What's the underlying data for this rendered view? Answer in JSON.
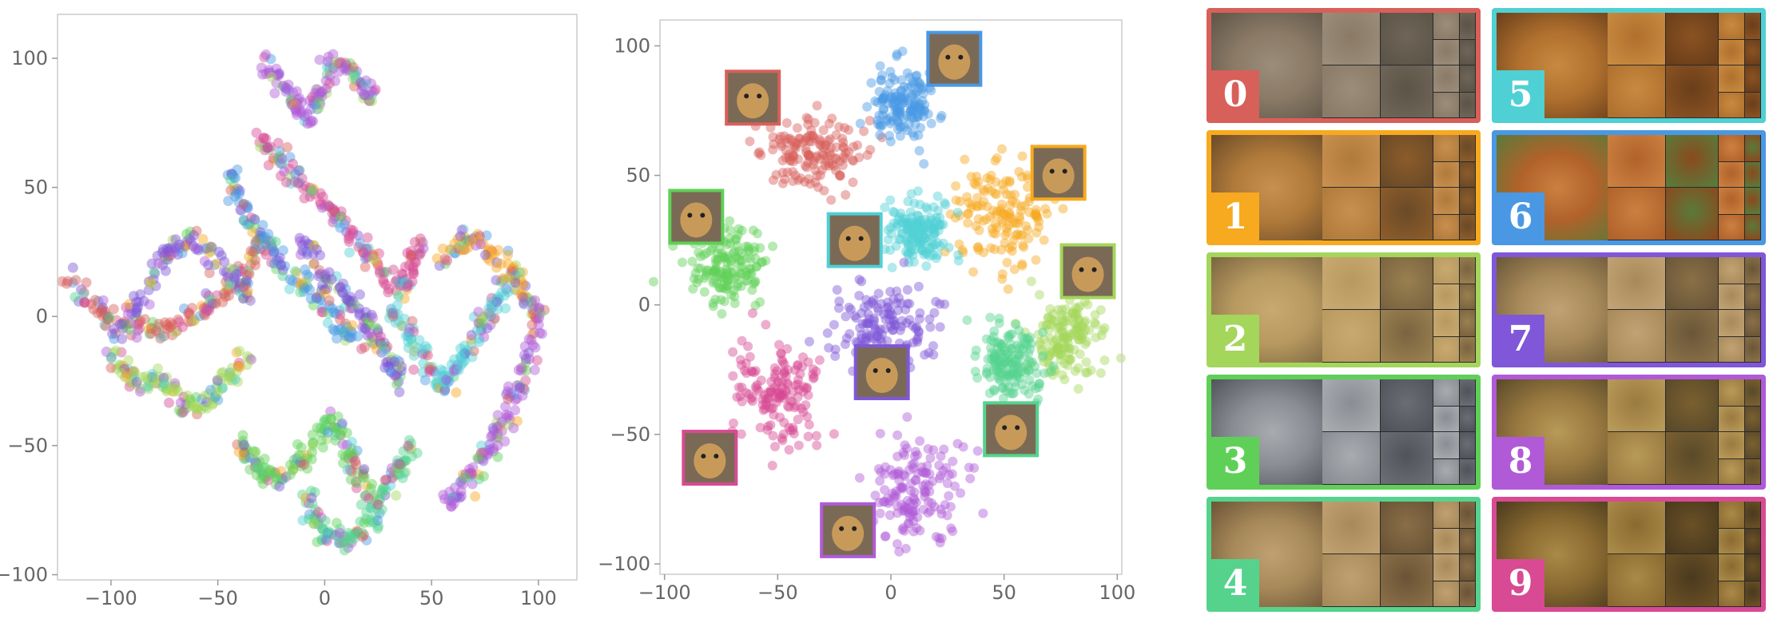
{
  "chart_data": [
    {
      "type": "scatter",
      "title": "",
      "xlabel": "",
      "ylabel": "",
      "xlim": [
        -125,
        118
      ],
      "ylim": [
        -102,
        117
      ],
      "xticks": [
        -100,
        -50,
        0,
        50,
        100
      ],
      "yticks": [
        -100,
        -50,
        0,
        50,
        100
      ],
      "xtick_labels": [
        "−100",
        "−50",
        "0",
        "50",
        "100"
      ],
      "ytick_labels": [
        "−100",
        "−50",
        "0",
        "50",
        "100"
      ],
      "grid": false,
      "note": "points of all 10 classes intermixed in tangled strands",
      "strands": [
        {
          "class": 0,
          "points": [
            [
              -120,
              14
            ],
            [
              -110,
              6
            ],
            [
              -100,
              -2
            ],
            [
              -88,
              -4
            ],
            [
              -76,
              -6
            ],
            [
              -64,
              -2
            ],
            [
              -54,
              4
            ],
            [
              -44,
              10
            ],
            [
              -36,
              20
            ],
            [
              -26,
              30
            ]
          ]
        },
        {
          "class": 7,
          "points": [
            [
              -98,
              -8
            ],
            [
              -88,
              4
            ],
            [
              -80,
              16
            ],
            [
              -72,
              26
            ],
            [
              -62,
              30
            ],
            [
              -52,
              22
            ],
            [
              -42,
              14
            ],
            [
              -34,
              6
            ]
          ]
        },
        {
          "class": 8,
          "points": [
            [
              -28,
              99
            ],
            [
              -20,
              92
            ],
            [
              -14,
              82
            ],
            [
              -8,
              76
            ],
            [
              -2,
              86
            ],
            [
              2,
              100
            ],
            [
              10,
              96
            ],
            [
              18,
              90
            ],
            [
              24,
              84
            ]
          ]
        },
        {
          "class": 9,
          "points": [
            [
              -30,
              70
            ],
            [
              -22,
              62
            ],
            [
              -14,
              54
            ],
            [
              -6,
              46
            ],
            [
              4,
              40
            ],
            [
              12,
              32
            ],
            [
              20,
              24
            ],
            [
              28,
              16
            ],
            [
              36,
              10
            ],
            [
              42,
              20
            ],
            [
              46,
              30
            ]
          ]
        },
        {
          "class": 6,
          "points": [
            [
              -44,
              58
            ],
            [
              -40,
              46
            ],
            [
              -34,
              36
            ],
            [
              -28,
              28
            ],
            [
              -20,
              20
            ],
            [
              -10,
              12
            ],
            [
              0,
              4
            ],
            [
              8,
              -4
            ],
            [
              16,
              -12
            ]
          ]
        },
        {
          "class": 2,
          "points": [
            [
              -100,
              -14
            ],
            [
              -94,
              -20
            ],
            [
              -86,
              -26
            ],
            [
              -76,
              -24
            ],
            [
              -68,
              -32
            ],
            [
              -60,
              -36
            ],
            [
              -52,
              -30
            ],
            [
              -44,
              -22
            ],
            [
              -36,
              -16
            ]
          ]
        },
        {
          "class": 3,
          "points": [
            [
              -40,
              -48
            ],
            [
              -34,
              -54
            ],
            [
              -28,
              -60
            ],
            [
              -20,
              -62
            ],
            [
              -12,
              -56
            ],
            [
              -4,
              -48
            ],
            [
              4,
              -42
            ],
            [
              10,
              -50
            ],
            [
              14,
              -60
            ],
            [
              20,
              -68
            ]
          ]
        },
        {
          "class": 4,
          "points": [
            [
              -10,
              -70
            ],
            [
              -4,
              -78
            ],
            [
              2,
              -86
            ],
            [
              10,
              -88
            ],
            [
              18,
              -82
            ],
            [
              24,
              -74
            ],
            [
              30,
              -66
            ],
            [
              36,
              -58
            ],
            [
              40,
              -48
            ]
          ]
        },
        {
          "class": 5,
          "points": [
            [
              30,
              4
            ],
            [
              38,
              -4
            ],
            [
              44,
              -14
            ],
            [
              50,
              -22
            ],
            [
              56,
              -28
            ],
            [
              62,
              -20
            ],
            [
              68,
              -10
            ],
            [
              74,
              -2
            ],
            [
              80,
              6
            ],
            [
              86,
              14
            ]
          ]
        },
        {
          "class": 1,
          "points": [
            [
              56,
              20
            ],
            [
              64,
              28
            ],
            [
              72,
              30
            ],
            [
              80,
              24
            ],
            [
              88,
              16
            ],
            [
              94,
              8
            ],
            [
              100,
              0
            ]
          ]
        },
        {
          "class": 8,
          "points": [
            [
              100,
              4
            ],
            [
              98,
              -10
            ],
            [
              94,
              -22
            ],
            [
              88,
              -34
            ],
            [
              82,
              -44
            ],
            [
              76,
              -52
            ],
            [
              70,
              -60
            ],
            [
              64,
              -66
            ],
            [
              58,
              -72
            ]
          ]
        },
        {
          "class": 7,
          "points": [
            [
              -10,
              30
            ],
            [
              -4,
              20
            ],
            [
              4,
              12
            ],
            [
              12,
              6
            ],
            [
              20,
              -2
            ],
            [
              26,
              -10
            ],
            [
              32,
              -18
            ],
            [
              36,
              -26
            ]
          ]
        }
      ]
    },
    {
      "type": "scatter",
      "title": "",
      "xlabel": "",
      "ylabel": "",
      "xlim": [
        -102,
        102
      ],
      "ylim": [
        -104,
        110
      ],
      "xticks": [
        -100,
        -50,
        0,
        50,
        100
      ],
      "yticks": [
        -100,
        -50,
        0,
        50,
        100
      ],
      "xtick_labels": [
        "−100",
        "−50",
        "0",
        "50",
        "100"
      ],
      "ytick_labels": [
        "−100",
        "−50",
        "0",
        "50",
        "100"
      ],
      "grid": false,
      "clusters": [
        {
          "class": 0,
          "center": [
            -35,
            59
          ],
          "spread": [
            20,
            12
          ]
        },
        {
          "class": 6,
          "center": [
            5,
            78
          ],
          "spread": [
            12,
            14
          ]
        },
        {
          "class": 1,
          "center": [
            50,
            34
          ],
          "spread": [
            20,
            18
          ]
        },
        {
          "class": 5,
          "center": [
            12,
            28
          ],
          "spread": [
            12,
            10
          ]
        },
        {
          "class": 3,
          "center": [
            -72,
            15
          ],
          "spread": [
            16,
            14
          ]
        },
        {
          "class": 2,
          "center": [
            78,
            -14
          ],
          "spread": [
            14,
            14
          ]
        },
        {
          "class": 4,
          "center": [
            52,
            -22
          ],
          "spread": [
            13,
            13
          ]
        },
        {
          "class": 7,
          "center": [
            -4,
            -10
          ],
          "spread": [
            21,
            15
          ]
        },
        {
          "class": 9,
          "center": [
            -50,
            -34
          ],
          "spread": [
            18,
            18
          ]
        },
        {
          "class": 8,
          "center": [
            9,
            -72
          ],
          "spread": [
            20,
            19
          ]
        }
      ],
      "thumbnails": [
        {
          "class": 0,
          "at": [
            -61,
            80
          ]
        },
        {
          "class": 6,
          "at": [
            28,
            95
          ]
        },
        {
          "class": 1,
          "at": [
            74,
            51
          ]
        },
        {
          "class": 5,
          "at": [
            -16,
            25
          ]
        },
        {
          "class": 3,
          "at": [
            -86,
            34
          ]
        },
        {
          "class": 2,
          "at": [
            87,
            13
          ]
        },
        {
          "class": 4,
          "at": [
            53,
            -48
          ]
        },
        {
          "class": 7,
          "at": [
            -4,
            -26
          ]
        },
        {
          "class": 9,
          "at": [
            -80,
            -59
          ]
        },
        {
          "class": 8,
          "at": [
            -19,
            -87
          ]
        }
      ]
    }
  ],
  "classes": [
    {
      "id": "0",
      "color": "#d8605a",
      "icon": "wolf-face"
    },
    {
      "id": "1",
      "color": "#f7a91f",
      "icon": "tiger-face"
    },
    {
      "id": "2",
      "color": "#a3d65a",
      "icon": "cheetah-face"
    },
    {
      "id": "3",
      "color": "#5fd057",
      "icon": "snow-leopard-face"
    },
    {
      "id": "4",
      "color": "#55d38d",
      "icon": "cheetah-cub-face"
    },
    {
      "id": "5",
      "color": "#4fd0d4",
      "icon": "tiger-face"
    },
    {
      "id": "6",
      "color": "#4a98e4",
      "icon": "fox-face"
    },
    {
      "id": "7",
      "color": "#7f57d8",
      "icon": "lion-face"
    },
    {
      "id": "8",
      "color": "#b05ad8",
      "icon": "jaguar-face"
    },
    {
      "id": "9",
      "color": "#d84a93",
      "icon": "lion-face"
    }
  ]
}
